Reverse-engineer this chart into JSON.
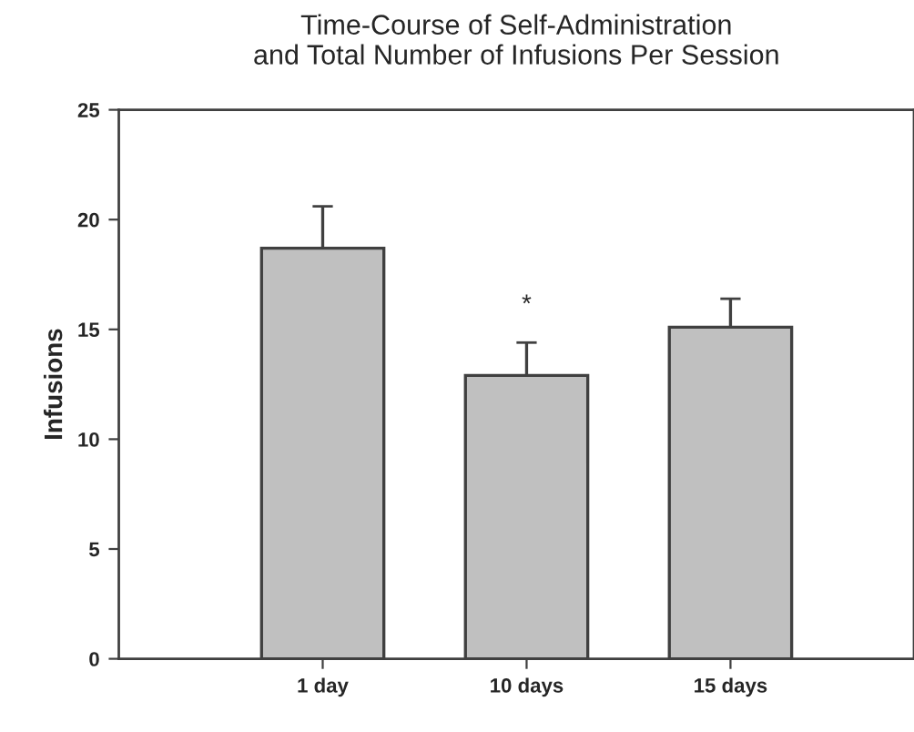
{
  "chart_data": {
    "type": "bar",
    "title": "Time-Course of Self-Administration\nand Total Number of Infusions Per Session",
    "ylabel": "Infusions",
    "categories": [
      "1 day",
      "10 days",
      "15 days"
    ],
    "values": [
      18.7,
      12.9,
      15.1
    ],
    "errors": [
      1.9,
      1.5,
      1.3
    ],
    "color": "#c0c0c0",
    "ylim": [
      0,
      25
    ],
    "yticks": [
      0,
      5,
      10,
      15,
      20,
      25
    ],
    "grid": false,
    "annotations": [
      "*"
    ]
  }
}
